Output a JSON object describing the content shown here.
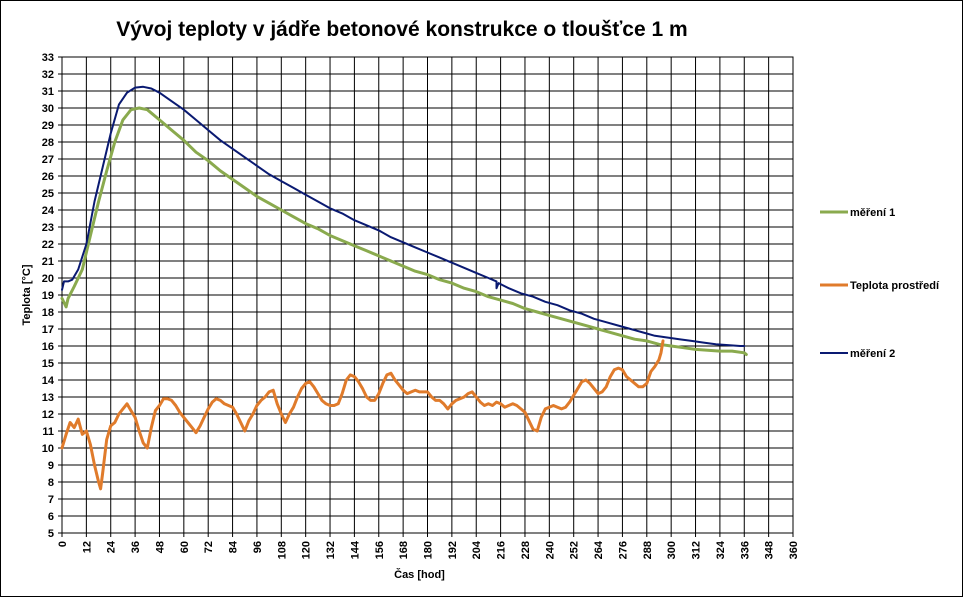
{
  "chart_data": {
    "type": "line",
    "title": "Vývoj teploty  v jádře betonové konstrukce o tloušťce 1 m",
    "xlabel": "Čas [hod]",
    "ylabel": "Teplota [°C]",
    "xlim": [
      0,
      360
    ],
    "ylim": [
      5,
      33
    ],
    "xticks": [
      0,
      12,
      24,
      36,
      48,
      60,
      72,
      84,
      96,
      108,
      120,
      132,
      144,
      156,
      168,
      180,
      192,
      204,
      216,
      228,
      240,
      252,
      264,
      276,
      288,
      300,
      312,
      324,
      336,
      348,
      360
    ],
    "yticks": [
      5,
      6,
      7,
      8,
      9,
      10,
      11,
      12,
      13,
      14,
      15,
      16,
      17,
      18,
      19,
      20,
      21,
      22,
      23,
      24,
      25,
      26,
      27,
      28,
      29,
      30,
      31,
      32,
      33
    ],
    "grid": true,
    "legend_position": "right",
    "series": [
      {
        "name": "měření 1",
        "color": "#8aaa4e",
        "points": [
          [
            0,
            18.8
          ],
          [
            2,
            18.3
          ],
          [
            3,
            18.8
          ],
          [
            6,
            19.5
          ],
          [
            10,
            20.5
          ],
          [
            14,
            22.5
          ],
          [
            18,
            24.5
          ],
          [
            22,
            26.3
          ],
          [
            26,
            28.0
          ],
          [
            30,
            29.3
          ],
          [
            34,
            29.9
          ],
          [
            38,
            30.0
          ],
          [
            42,
            29.9
          ],
          [
            48,
            29.3
          ],
          [
            54,
            28.7
          ],
          [
            60,
            28.1
          ],
          [
            66,
            27.4
          ],
          [
            72,
            26.9
          ],
          [
            78,
            26.3
          ],
          [
            84,
            25.8
          ],
          [
            90,
            25.3
          ],
          [
            96,
            24.8
          ],
          [
            102,
            24.4
          ],
          [
            108,
            24.0
          ],
          [
            114,
            23.6
          ],
          [
            120,
            23.2
          ],
          [
            126,
            22.9
          ],
          [
            132,
            22.5
          ],
          [
            138,
            22.2
          ],
          [
            144,
            21.9
          ],
          [
            150,
            21.6
          ],
          [
            156,
            21.3
          ],
          [
            162,
            21.0
          ],
          [
            168,
            20.7
          ],
          [
            174,
            20.4
          ],
          [
            180,
            20.2
          ],
          [
            186,
            19.9
          ],
          [
            192,
            19.7
          ],
          [
            198,
            19.4
          ],
          [
            204,
            19.2
          ],
          [
            210,
            18.9
          ],
          [
            216,
            18.7
          ],
          [
            222,
            18.5
          ],
          [
            228,
            18.2
          ],
          [
            234,
            18.0
          ],
          [
            240,
            17.8
          ],
          [
            246,
            17.6
          ],
          [
            252,
            17.4
          ],
          [
            258,
            17.2
          ],
          [
            264,
            17.0
          ],
          [
            270,
            16.8
          ],
          [
            276,
            16.6
          ],
          [
            282,
            16.4
          ],
          [
            288,
            16.3
          ],
          [
            294,
            16.1
          ],
          [
            300,
            16.0
          ],
          [
            306,
            15.9
          ],
          [
            312,
            15.8
          ],
          [
            318,
            15.75
          ],
          [
            324,
            15.7
          ],
          [
            330,
            15.7
          ],
          [
            336,
            15.6
          ],
          [
            337,
            15.5
          ]
        ]
      },
      {
        "name": "Teplota prostředí",
        "color": "#e07b2b",
        "points": [
          [
            0,
            10.0
          ],
          [
            2,
            10.8
          ],
          [
            4,
            11.5
          ],
          [
            6,
            11.2
          ],
          [
            8,
            11.7
          ],
          [
            10,
            10.8
          ],
          [
            12,
            11.0
          ],
          [
            14,
            10.2
          ],
          [
            16,
            9.0
          ],
          [
            18,
            8.0
          ],
          [
            19,
            7.6
          ],
          [
            20,
            8.5
          ],
          [
            22,
            10.5
          ],
          [
            24,
            11.3
          ],
          [
            26,
            11.5
          ],
          [
            28,
            12.0
          ],
          [
            30,
            12.3
          ],
          [
            32,
            12.6
          ],
          [
            34,
            12.2
          ],
          [
            36,
            11.8
          ],
          [
            38,
            11.0
          ],
          [
            40,
            10.3
          ],
          [
            42,
            10.0
          ],
          [
            44,
            11.2
          ],
          [
            46,
            12.2
          ],
          [
            48,
            12.5
          ],
          [
            50,
            12.9
          ],
          [
            52,
            12.9
          ],
          [
            54,
            12.8
          ],
          [
            56,
            12.5
          ],
          [
            58,
            12.1
          ],
          [
            60,
            11.8
          ],
          [
            62,
            11.5
          ],
          [
            64,
            11.2
          ],
          [
            66,
            10.9
          ],
          [
            68,
            11.3
          ],
          [
            70,
            11.8
          ],
          [
            72,
            12.3
          ],
          [
            74,
            12.7
          ],
          [
            76,
            12.9
          ],
          [
            78,
            12.8
          ],
          [
            80,
            12.6
          ],
          [
            82,
            12.5
          ],
          [
            84,
            12.4
          ],
          [
            86,
            12.0
          ],
          [
            88,
            11.5
          ],
          [
            90,
            11.0
          ],
          [
            92,
            11.6
          ],
          [
            94,
            12.0
          ],
          [
            96,
            12.5
          ],
          [
            98,
            12.8
          ],
          [
            100,
            13.0
          ],
          [
            102,
            13.3
          ],
          [
            104,
            13.4
          ],
          [
            106,
            12.6
          ],
          [
            108,
            12.0
          ],
          [
            110,
            11.5
          ],
          [
            112,
            12.0
          ],
          [
            114,
            12.4
          ],
          [
            116,
            13.0
          ],
          [
            118,
            13.5
          ],
          [
            120,
            13.8
          ],
          [
            122,
            13.9
          ],
          [
            124,
            13.6
          ],
          [
            126,
            13.2
          ],
          [
            128,
            12.8
          ],
          [
            130,
            12.6
          ],
          [
            132,
            12.5
          ],
          [
            134,
            12.5
          ],
          [
            136,
            12.6
          ],
          [
            138,
            13.2
          ],
          [
            140,
            14.0
          ],
          [
            142,
            14.3
          ],
          [
            144,
            14.2
          ],
          [
            146,
            13.9
          ],
          [
            148,
            13.5
          ],
          [
            150,
            13.0
          ],
          [
            152,
            12.8
          ],
          [
            154,
            12.8
          ],
          [
            156,
            13.2
          ],
          [
            158,
            13.8
          ],
          [
            160,
            14.3
          ],
          [
            162,
            14.4
          ],
          [
            164,
            14.0
          ],
          [
            166,
            13.7
          ],
          [
            168,
            13.4
          ],
          [
            170,
            13.2
          ],
          [
            172,
            13.3
          ],
          [
            174,
            13.4
          ],
          [
            176,
            13.3
          ],
          [
            178,
            13.3
          ],
          [
            180,
            13.3
          ],
          [
            182,
            13.0
          ],
          [
            184,
            12.8
          ],
          [
            186,
            12.8
          ],
          [
            188,
            12.6
          ],
          [
            190,
            12.3
          ],
          [
            192,
            12.6
          ],
          [
            194,
            12.8
          ],
          [
            196,
            12.9
          ],
          [
            198,
            13.0
          ],
          [
            200,
            13.2
          ],
          [
            202,
            13.3
          ],
          [
            204,
            13.0
          ],
          [
            206,
            12.7
          ],
          [
            208,
            12.5
          ],
          [
            210,
            12.6
          ],
          [
            212,
            12.5
          ],
          [
            214,
            12.7
          ],
          [
            216,
            12.6
          ],
          [
            218,
            12.4
          ],
          [
            220,
            12.5
          ],
          [
            222,
            12.6
          ],
          [
            224,
            12.5
          ],
          [
            226,
            12.3
          ],
          [
            228,
            12.1
          ],
          [
            230,
            11.6
          ],
          [
            232,
            11.1
          ],
          [
            234,
            11.0
          ],
          [
            236,
            11.8
          ],
          [
            238,
            12.3
          ],
          [
            240,
            12.4
          ],
          [
            242,
            12.5
          ],
          [
            244,
            12.4
          ],
          [
            246,
            12.3
          ],
          [
            248,
            12.4
          ],
          [
            250,
            12.7
          ],
          [
            252,
            13.1
          ],
          [
            254,
            13.5
          ],
          [
            256,
            13.9
          ],
          [
            258,
            14.0
          ],
          [
            260,
            13.8
          ],
          [
            262,
            13.5
          ],
          [
            264,
            13.2
          ],
          [
            266,
            13.3
          ],
          [
            268,
            13.6
          ],
          [
            270,
            14.2
          ],
          [
            272,
            14.6
          ],
          [
            274,
            14.7
          ],
          [
            276,
            14.6
          ],
          [
            278,
            14.2
          ],
          [
            280,
            14.0
          ],
          [
            282,
            13.8
          ],
          [
            284,
            13.6
          ],
          [
            286,
            13.6
          ],
          [
            288,
            13.8
          ],
          [
            290,
            14.5
          ],
          [
            292,
            14.8
          ],
          [
            294,
            15.2
          ],
          [
            295,
            15.6
          ],
          [
            296,
            16.3
          ]
        ]
      },
      {
        "name": "měření 2",
        "color": "#0a1a72",
        "points": [
          [
            0,
            19.3
          ],
          [
            1,
            19.8
          ],
          [
            3,
            19.8
          ],
          [
            5,
            19.9
          ],
          [
            8,
            20.5
          ],
          [
            12,
            22.0
          ],
          [
            16,
            24.5
          ],
          [
            20,
            26.5
          ],
          [
            24,
            28.5
          ],
          [
            28,
            30.2
          ],
          [
            32,
            30.9
          ],
          [
            36,
            31.2
          ],
          [
            40,
            31.25
          ],
          [
            44,
            31.15
          ],
          [
            48,
            30.9
          ],
          [
            54,
            30.4
          ],
          [
            60,
            29.9
          ],
          [
            66,
            29.3
          ],
          [
            72,
            28.7
          ],
          [
            78,
            28.1
          ],
          [
            84,
            27.6
          ],
          [
            90,
            27.1
          ],
          [
            96,
            26.6
          ],
          [
            102,
            26.1
          ],
          [
            108,
            25.7
          ],
          [
            114,
            25.3
          ],
          [
            120,
            24.9
          ],
          [
            126,
            24.5
          ],
          [
            132,
            24.1
          ],
          [
            138,
            23.8
          ],
          [
            144,
            23.4
          ],
          [
            150,
            23.1
          ],
          [
            156,
            22.8
          ],
          [
            162,
            22.4
          ],
          [
            168,
            22.1
          ],
          [
            174,
            21.8
          ],
          [
            180,
            21.5
          ],
          [
            186,
            21.2
          ],
          [
            192,
            20.9
          ],
          [
            198,
            20.6
          ],
          [
            204,
            20.3
          ],
          [
            210,
            20.0
          ],
          [
            214,
            19.8
          ],
          [
            214,
            19.4
          ],
          [
            215,
            19.7
          ],
          [
            220,
            19.4
          ],
          [
            226,
            19.1
          ],
          [
            232,
            18.9
          ],
          [
            238,
            18.6
          ],
          [
            244,
            18.4
          ],
          [
            250,
            18.1
          ],
          [
            256,
            17.9
          ],
          [
            262,
            17.6
          ],
          [
            268,
            17.4
          ],
          [
            274,
            17.2
          ],
          [
            280,
            17.0
          ],
          [
            286,
            16.8
          ],
          [
            292,
            16.6
          ],
          [
            298,
            16.5
          ],
          [
            304,
            16.4
          ],
          [
            310,
            16.3
          ],
          [
            316,
            16.2
          ],
          [
            322,
            16.1
          ],
          [
            328,
            16.05
          ],
          [
            334,
            16.0
          ],
          [
            336,
            16.0
          ]
        ]
      }
    ]
  }
}
